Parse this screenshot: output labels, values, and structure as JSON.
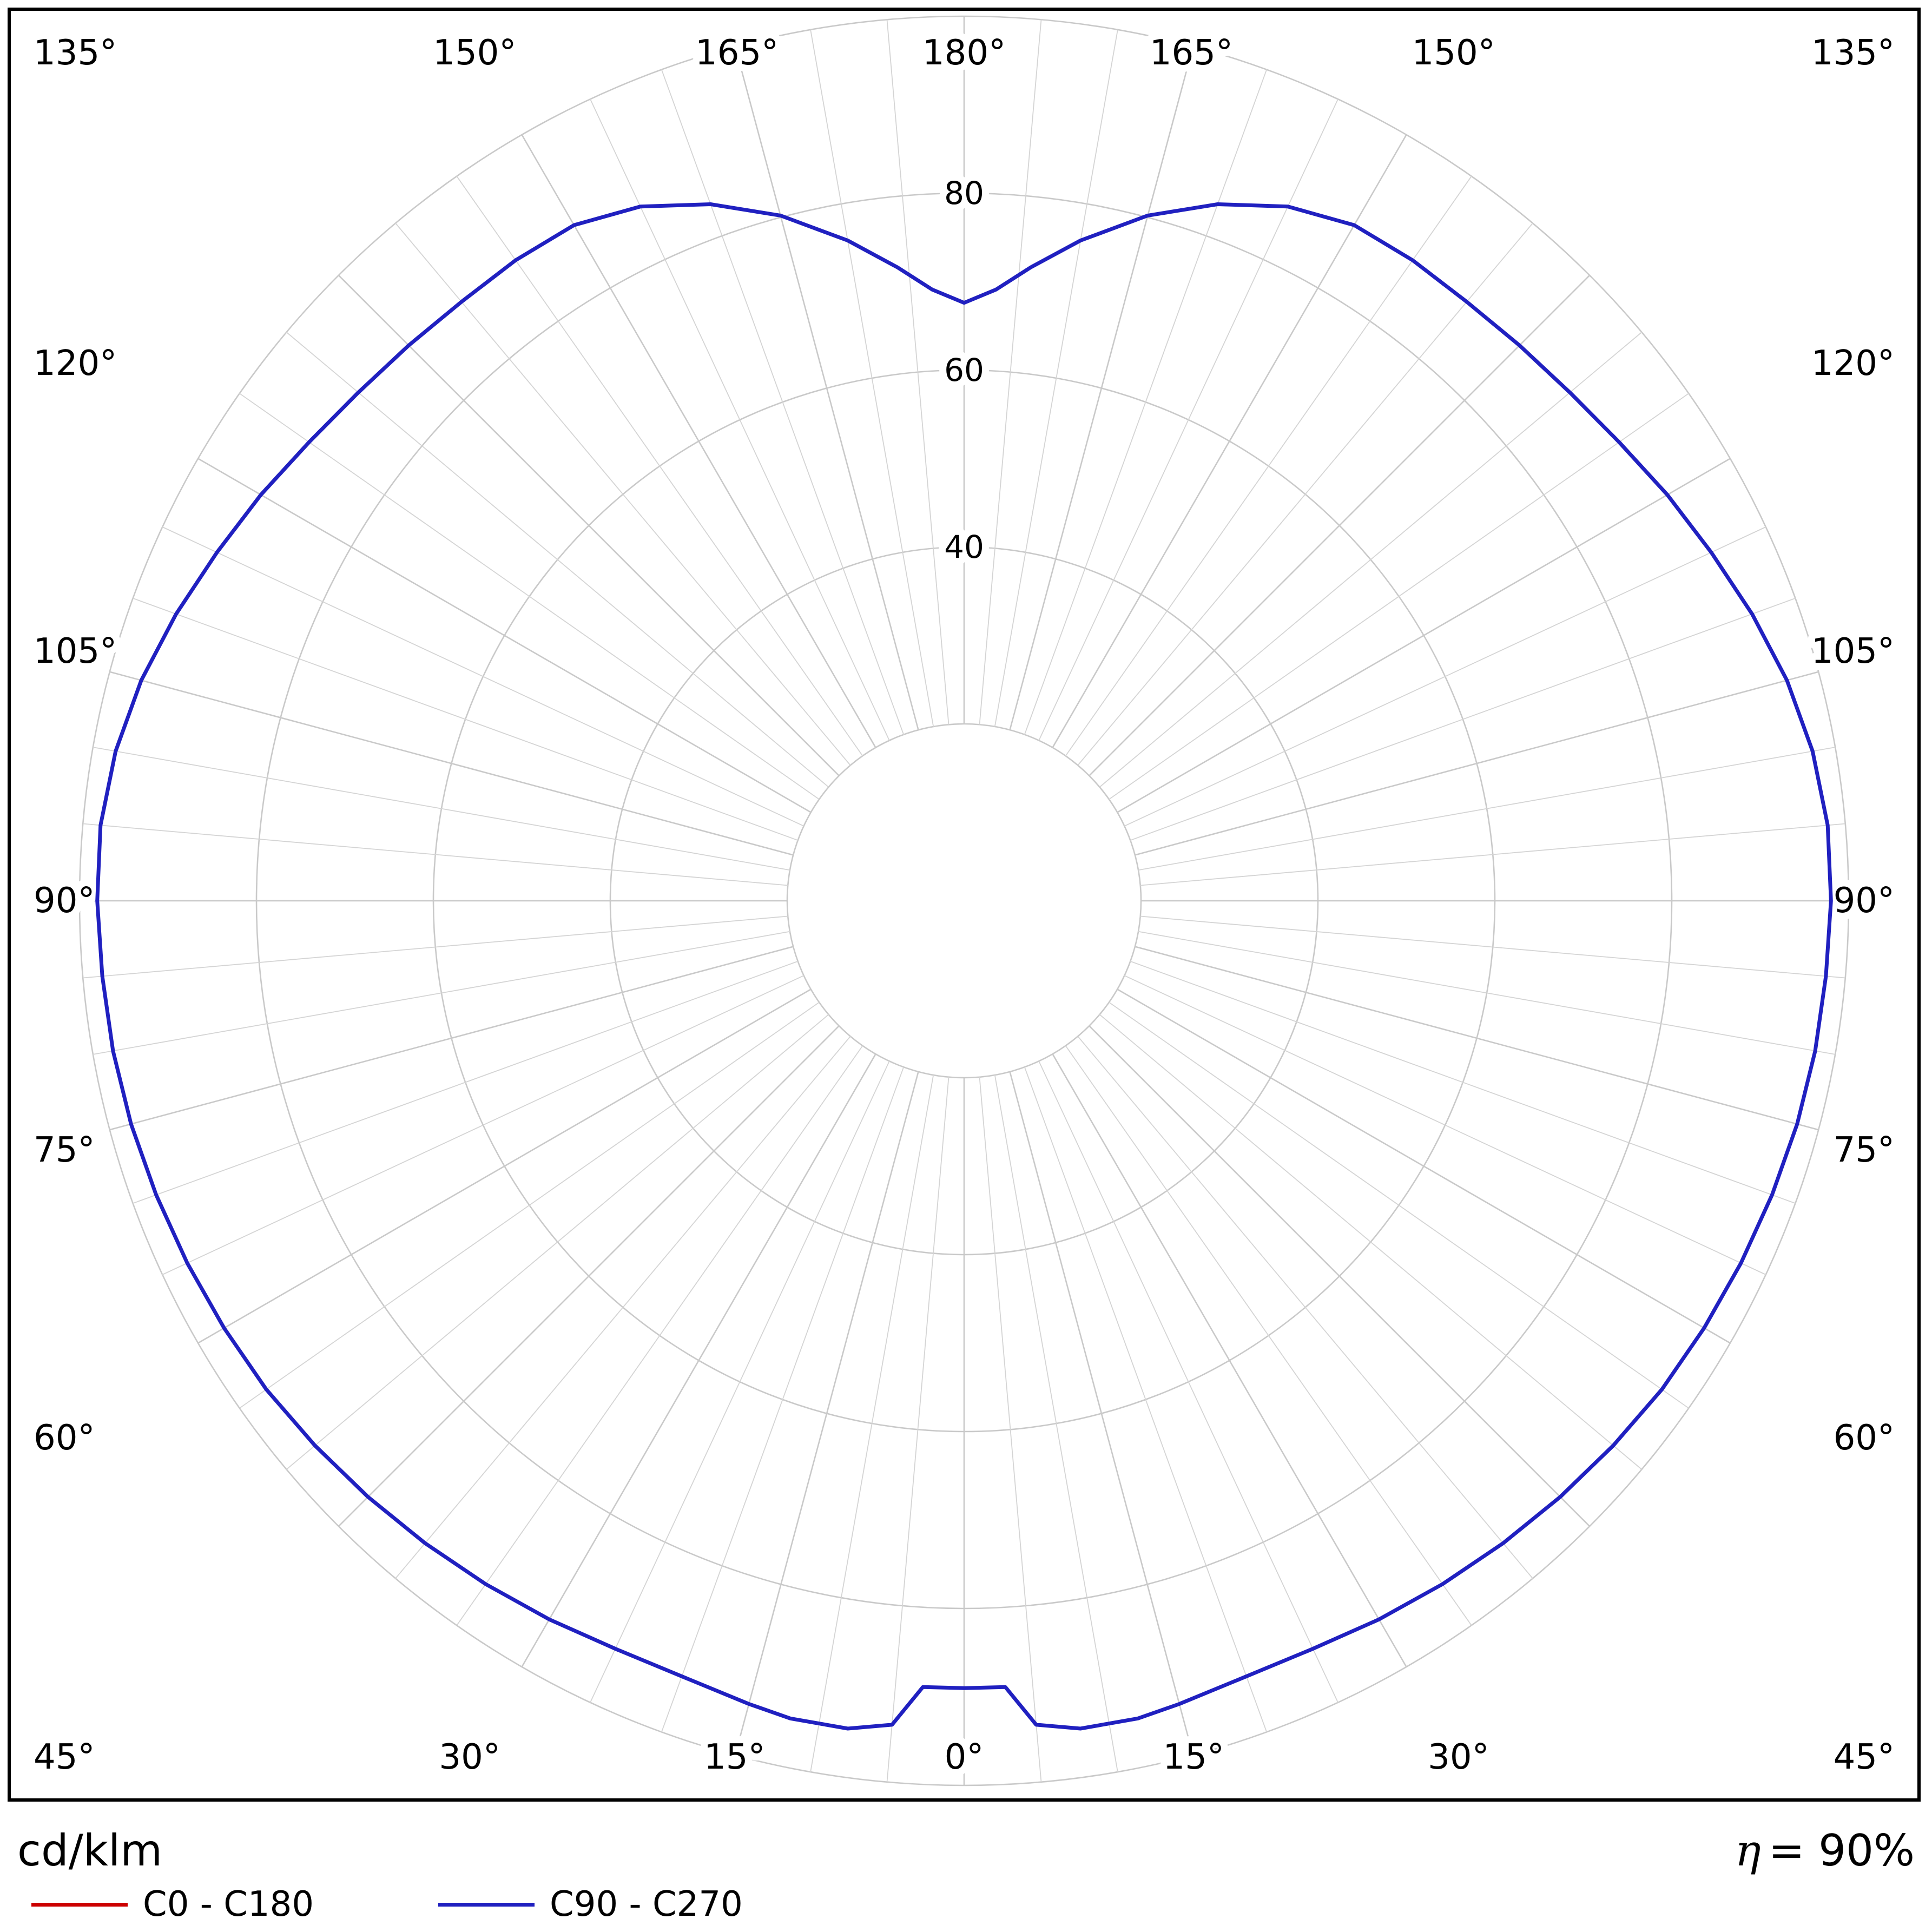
{
  "chart_data": {
    "type": "polar",
    "units_label": "cd/klm",
    "efficiency": {
      "symbol": "η",
      "text": "= 90%"
    },
    "legend_position": "bottom-left",
    "legend": [
      {
        "label": "C0 - C180",
        "color": "#cc0000"
      },
      {
        "label": "C90 - C270",
        "color": "#2020c0"
      }
    ],
    "gamma_axis": {
      "unit": "°",
      "zero_position": "bottom",
      "labels_deg": [
        0,
        15,
        30,
        45,
        60,
        75,
        90,
        105,
        120,
        135,
        150,
        165,
        180
      ],
      "minor_spoke_step_deg": 5,
      "major_spoke_step_deg": 15
    },
    "radial_axis": {
      "unit": "cd/klm",
      "tick_labels": [
        40,
        60,
        80
      ],
      "ring_values": [
        20,
        40,
        60,
        80,
        100
      ],
      "max": 100,
      "grid": true
    },
    "series": [
      {
        "name": "C0 - C180",
        "color": "#cc0000",
        "values": null
      },
      {
        "name": "C90 - C270",
        "color": "#2020c0",
        "symmetric": true,
        "gamma_deg": [
          0,
          3,
          5,
          8,
          12,
          15,
          20,
          25,
          30,
          35,
          40,
          45,
          50,
          55,
          60,
          65,
          70,
          75,
          80,
          85,
          90,
          95,
          100,
          105,
          110,
          115,
          120,
          125,
          130,
          135,
          140,
          145,
          150,
          155,
          160,
          165,
          170,
          174,
          177,
          180
        ],
        "values": [
          89,
          89,
          93.5,
          94.5,
          94.5,
          94,
          93.3,
          93.3,
          93.8,
          94.3,
          94.8,
          95.3,
          95.8,
          96.3,
          96.6,
          96.9,
          97.2,
          97.5,
          97.7,
          97.8,
          98,
          98,
          97.4,
          96.3,
          94.8,
          93.2,
          91.8,
          90.4,
          89.4,
          88.8,
          88.4,
          88.4,
          88.2,
          86.6,
          83.8,
          80.2,
          75.8,
          72,
          69.2,
          67.6
        ]
      }
    ]
  }
}
